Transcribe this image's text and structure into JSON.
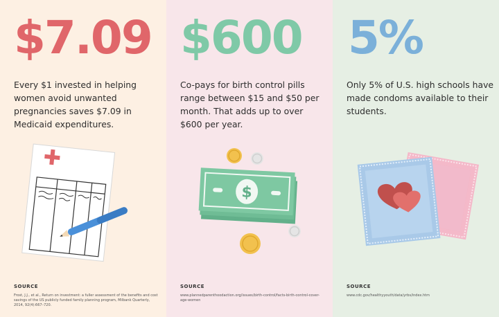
{
  "panels": [
    {
      "stat": "$7.09",
      "description": "Every $1 invested in helping women avoid unwanted pregnancies saves $7.09 in Medicaid expenditures.",
      "source_label": "SOURCE",
      "source_text": "Frost, J.J., et al., Return on investment: a fuller assessment of the benefits and cost savings of the US publicly funded family planning program, Milbank Quarterly, 2014, 92(4):667–720."
    },
    {
      "stat": "$600",
      "description": "Co-pays for birth control pills range between $15 and $50 per month. That adds up to over $600 per year.",
      "source_label": "SOURCE",
      "source_text": "www.plannedparenthoodaction.org/issues/birth-control/facts-birth-control-cover-age-women"
    },
    {
      "stat": "5%",
      "description": "Only 5% of U.S. high schools have made condoms available to their students.",
      "source_label": "SOURCE",
      "source_text": "www.cdc.gov/healthyyouth/data/yrbs/index.htm"
    }
  ],
  "bill_symbol": "$",
  "colors": {
    "panel1_bg": "#fdf0e3",
    "panel2_bg": "#f8e6ea",
    "panel3_bg": "#e6efe4",
    "stat1": "#e0666a",
    "stat2": "#7fc9a7",
    "stat3": "#7bb0d9"
  },
  "icons": [
    "medical-chart-icon",
    "money-coins-icon",
    "condom-packets-icon"
  ]
}
